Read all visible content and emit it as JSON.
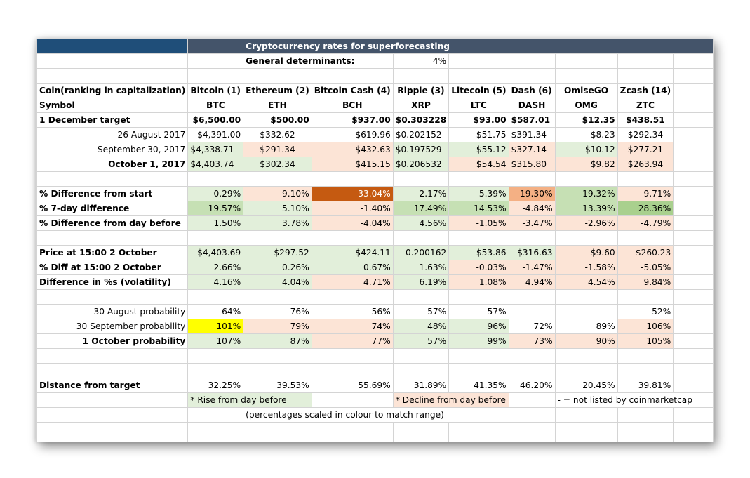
{
  "sheet": {
    "title": "Cryptocurrency rates for superforecasting",
    "general_determinants_label": "General determinants:",
    "general_determinants_value": "4%",
    "header_label": "Coin(ranking in capitalization)",
    "coins": [
      "Bitcoin (1)",
      "Ethereum (2)",
      "Bitcoin Cash (4)",
      "Ripple (3)",
      "Litecoin (5)",
      "Dash (6)",
      "OmiseGO",
      "Zcash (14)"
    ],
    "symbol_label": "Symbol",
    "symbols": [
      "BTC",
      "ETH",
      "BCH",
      "XRP",
      "LTC",
      "DASH",
      "OMG",
      "ZTC"
    ],
    "rows": {
      "target": {
        "label": "1 December target",
        "values": [
          "$6,500.00",
          "$500.00",
          "$937.00",
          "$0.303228",
          "$93.00",
          "$587.01",
          "$12.35",
          "$438.51"
        ]
      },
      "aug26": {
        "label": "26 August 2017",
        "values": [
          "$4,391.00",
          "$332.62",
          "$619.96",
          "$0.202152",
          "$51.75",
          "$391.34",
          "$8.23",
          "$292.34"
        ]
      },
      "sep30": {
        "label": "September 30, 2017",
        "values": [
          "$4,338.71",
          "$291.34",
          "$432.63",
          "$0.197529",
          "$55.12",
          "$327.14",
          "$10.12",
          "$277.21"
        ]
      },
      "oct1": {
        "label": "October 1, 2017",
        "values": [
          "$4,403.74",
          "$302.34",
          "$415.15",
          "$0.206532",
          "$54.54",
          "$315.80",
          "$9.82",
          "$263.94"
        ]
      },
      "diff_start": {
        "label": "% Difference from start",
        "values": [
          "0.29%",
          "-9.10%",
          "-33.04%",
          "2.17%",
          "5.39%",
          "-19.30%",
          "19.32%",
          "-9.71%"
        ]
      },
      "diff_7day": {
        "label": "% 7-day difference",
        "values": [
          "19.57%",
          "5.10%",
          "-1.40%",
          "17.49%",
          "14.53%",
          "-4.84%",
          "13.39%",
          "28.36%"
        ]
      },
      "diff_day_before": {
        "label": "% Difference from day before",
        "values": [
          "1.50%",
          "3.78%",
          "-4.04%",
          "4.56%",
          "-1.05%",
          "-3.47%",
          "-2.96%",
          "-4.79%"
        ]
      },
      "price_1500": {
        "label": "Price at 15:00 2 October",
        "values": [
          "$4,403.69",
          "$297.52",
          "$424.11",
          "0.200162",
          "$53.86",
          "$316.63",
          "$9.60",
          "$260.23"
        ]
      },
      "diff_1500": {
        "label": "% Diff at 15:00 2 October",
        "values": [
          "2.66%",
          "0.26%",
          "0.67%",
          "1.63%",
          "-0.03%",
          "-1.47%",
          "-1.58%",
          "-5.05%"
        ]
      },
      "volatility": {
        "label": "Difference in %s (volatility)",
        "values": [
          "4.16%",
          "4.04%",
          "4.71%",
          "6.19%",
          "1.08%",
          "4.94%",
          "4.54%",
          "9.84%"
        ]
      },
      "prob_aug30": {
        "label": "30 August  probability",
        "values": [
          "64%",
          "76%",
          "56%",
          "57%",
          "57%",
          "",
          "",
          "52%"
        ]
      },
      "prob_sep30": {
        "label": "30 September probability",
        "values": [
          "101%",
          "79%",
          "74%",
          "48%",
          "96%",
          "72%",
          "89%",
          "106%"
        ]
      },
      "prob_oct1": {
        "label": "1 October probability",
        "values": [
          "107%",
          "87%",
          "77%",
          "57%",
          "99%",
          "73%",
          "90%",
          "105%"
        ]
      },
      "distance": {
        "label": "Distance from target",
        "values": [
          "32.25%",
          "39.53%",
          "55.69%",
          "31.89%",
          "41.35%",
          "46.20%",
          "20.45%",
          "39.81%"
        ]
      }
    },
    "legend": {
      "rise": "* Rise from day before",
      "decline": "* Decline from day before",
      "not_listed": "- = not listed by coinmarketcap",
      "scale_note": "(percentages scaled in colour to match range)"
    }
  },
  "colors": {
    "header_blue": "#1f4e79",
    "header_slate": "#44546a",
    "green_light": "#e2efda",
    "green_mid": "#c6e0b4",
    "green_strong": "#a9d08e",
    "orange_light": "#fce4d6",
    "orange_mid": "#f4b084",
    "orange_strong": "#c55a11",
    "highlight_yellow": "#ffff00"
  }
}
